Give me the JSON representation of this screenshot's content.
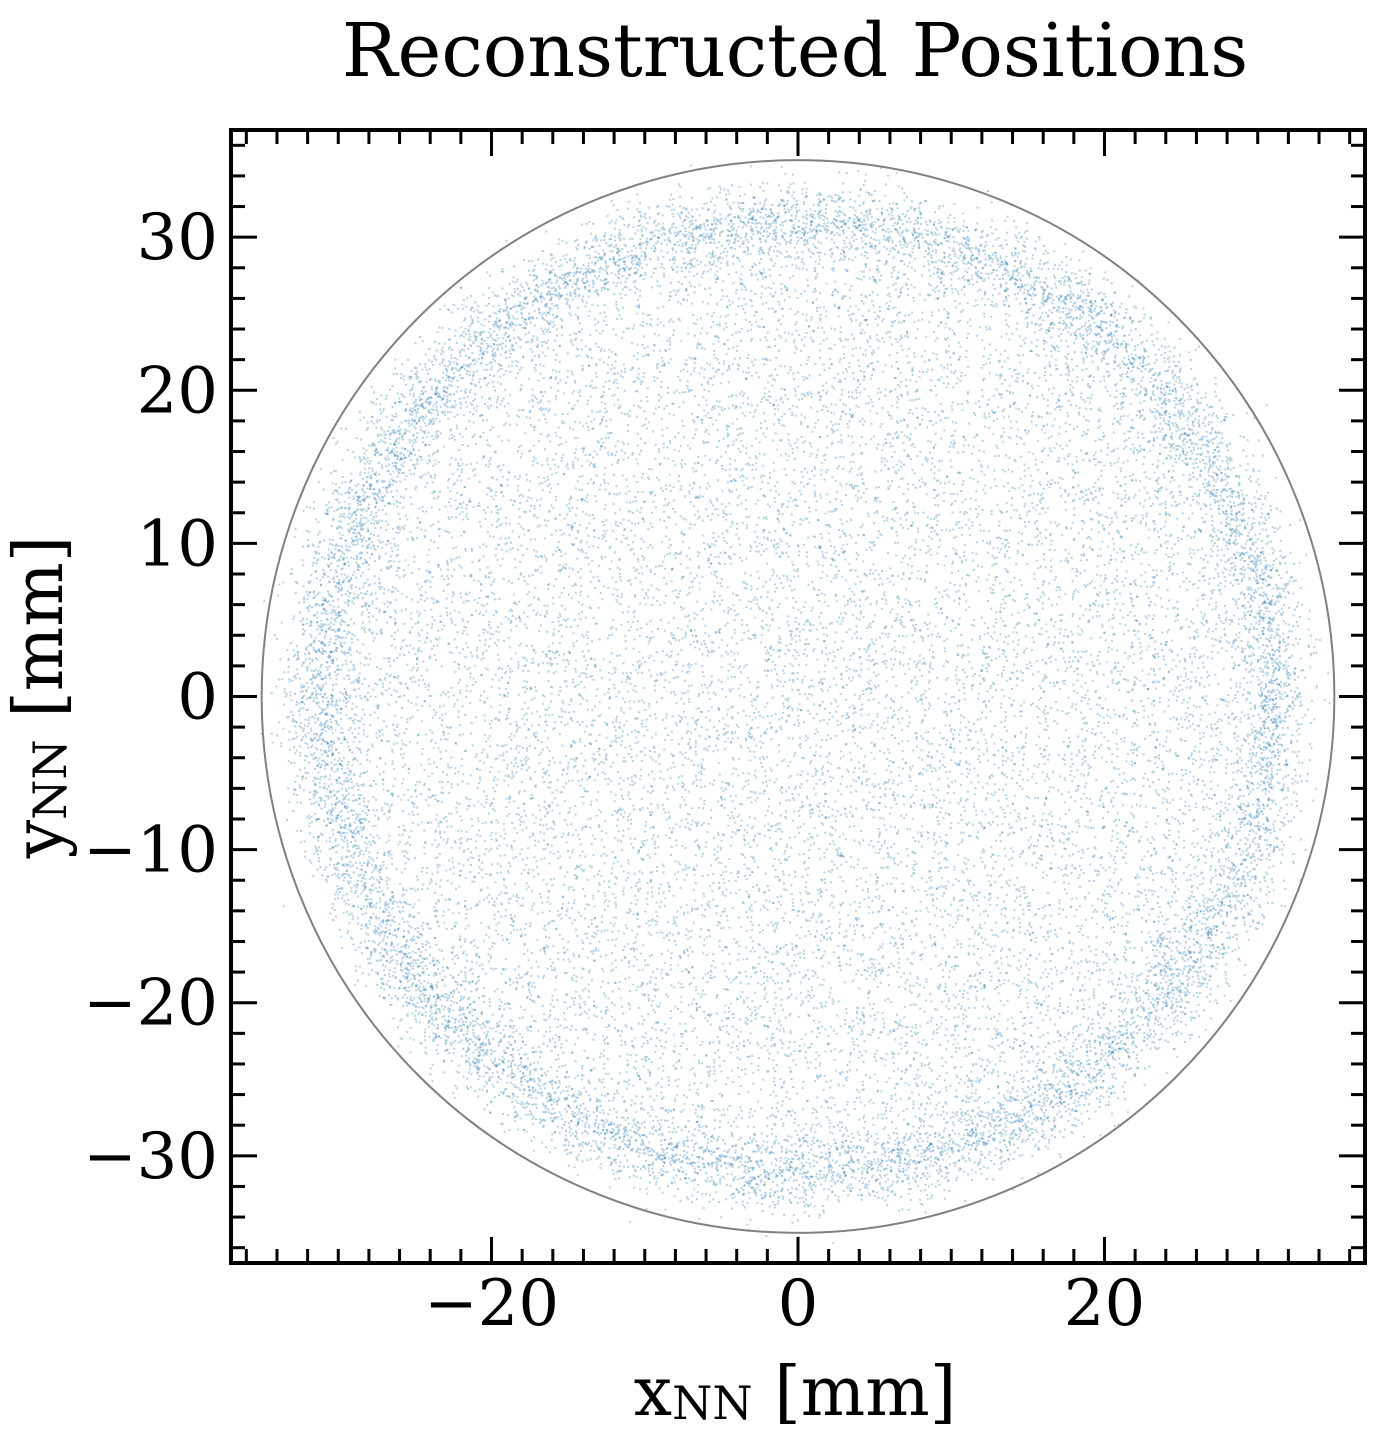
{
  "chart_data": {
    "type": "scatter",
    "title": "Reconstructed Positions",
    "xlabel": {
      "main": "x",
      "sub": "NN",
      "unit": "[mm]"
    },
    "ylabel": {
      "main": "y",
      "sub": "NN",
      "unit": "[mm]"
    },
    "xlim": [
      -37,
      37
    ],
    "ylim": [
      -37,
      37
    ],
    "x_ticks": [
      {
        "value": -20,
        "label": "−20"
      },
      {
        "value": 0,
        "label": "0"
      },
      {
        "value": 20,
        "label": "20"
      }
    ],
    "y_ticks": [
      {
        "value": -30,
        "label": "−30"
      },
      {
        "value": -20,
        "label": "−20"
      },
      {
        "value": -10,
        "label": "−10"
      },
      {
        "value": 0,
        "label": "0"
      },
      {
        "value": 10,
        "label": "10"
      },
      {
        "value": 20,
        "label": "20"
      },
      {
        "value": 30,
        "label": "30"
      }
    ],
    "minor_tick_step": 2,
    "grid": false,
    "boundary_circle": {
      "center": [
        0,
        0
      ],
      "radius": 35,
      "color": "#808080"
    },
    "series": [
      {
        "color": "#1f77b4",
        "distribution": "uniform disk with dense ring near the edge",
        "point_count_approx": 60000,
        "disk_radius": 31.5,
        "ring_radius": 31.3,
        "ring_width": 1.3
      }
    ]
  }
}
